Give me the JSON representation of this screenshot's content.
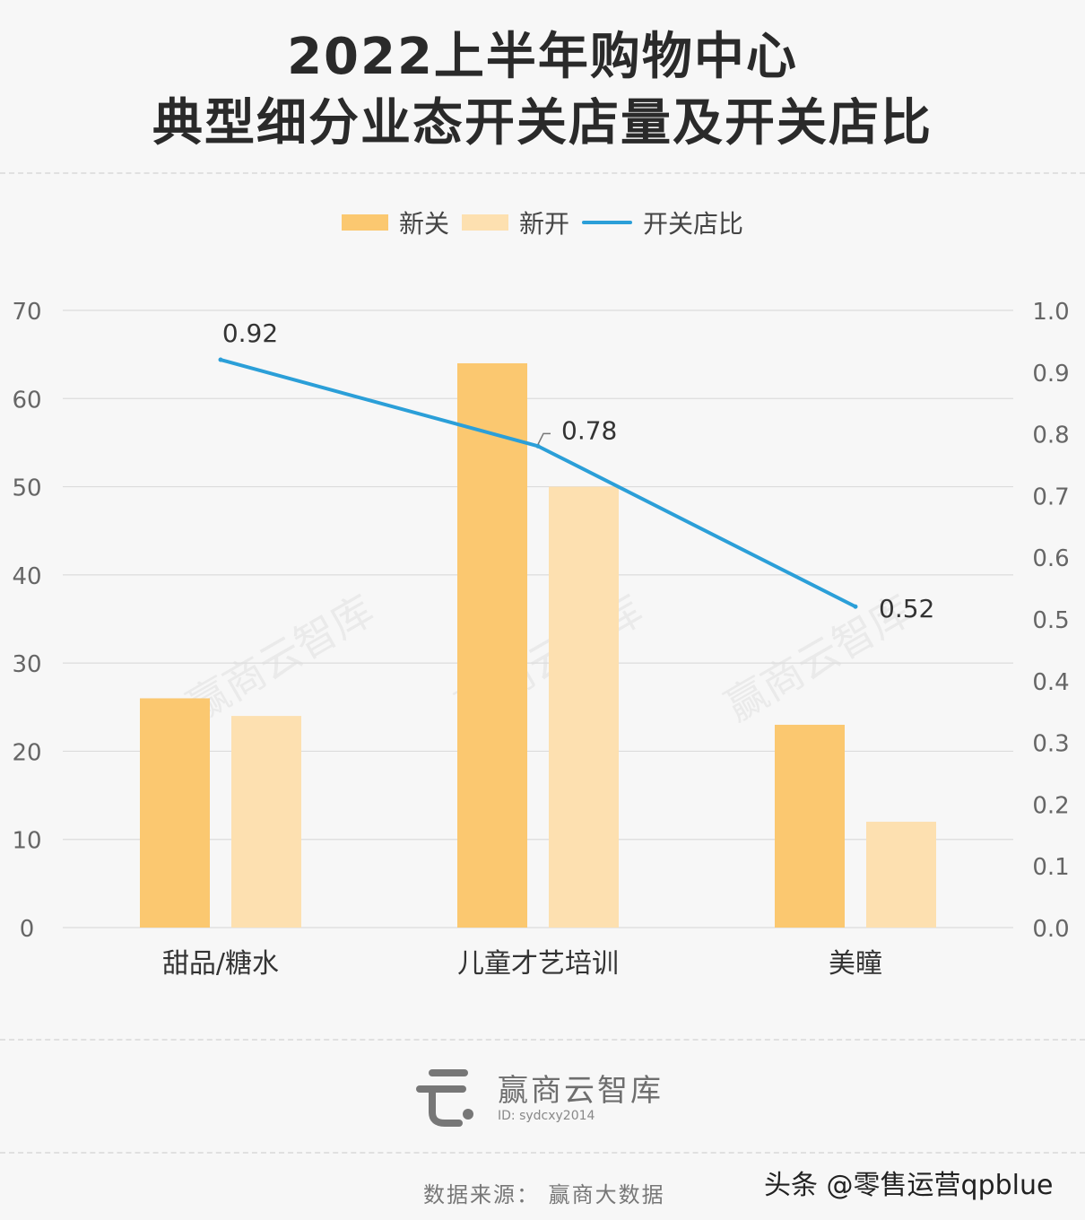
{
  "header": {
    "title_line1": "2022上半年购物中心",
    "title_line2": "典型细分业态开关店量及开关店比"
  },
  "legend": {
    "closed": "新关",
    "opened": "新开",
    "ratio": "开关店比"
  },
  "chart_data": {
    "type": "bar",
    "categories": [
      "甜品/糖水",
      "儿童才艺培训",
      "美瞳"
    ],
    "series": [
      {
        "name": "新关",
        "kind": "bar",
        "axis": "left",
        "values": [
          26,
          64,
          23
        ],
        "color": "#fbc870"
      },
      {
        "name": "新开",
        "kind": "bar",
        "axis": "left",
        "values": [
          24,
          50,
          12
        ],
        "color": "#fde0b0"
      },
      {
        "name": "开关店比",
        "kind": "line",
        "axis": "right",
        "values": [
          0.92,
          0.78,
          0.52
        ],
        "labels": [
          "0.92",
          "0.78",
          "0.52"
        ],
        "color": "#2b9fd8"
      }
    ],
    "y_left": {
      "min": 0,
      "max": 70,
      "ticks": [
        "0",
        "10",
        "20",
        "30",
        "40",
        "50",
        "60",
        "70"
      ]
    },
    "y_right": {
      "min": 0,
      "max": 1.0,
      "ticks": [
        "0.0",
        "0.1",
        "0.2",
        "0.3",
        "0.4",
        "0.5",
        "0.6",
        "0.7",
        "0.8",
        "0.9",
        "1.0"
      ]
    },
    "grid": true,
    "legend_position": "top-center"
  },
  "watermark_text": "赢商云智库",
  "brand": {
    "name": "赢商云智库",
    "id_text": "ID: sydcxy2014"
  },
  "source": "数据来源： 赢商大数据",
  "platform_watermark": "头条 @零售运营qpblue"
}
